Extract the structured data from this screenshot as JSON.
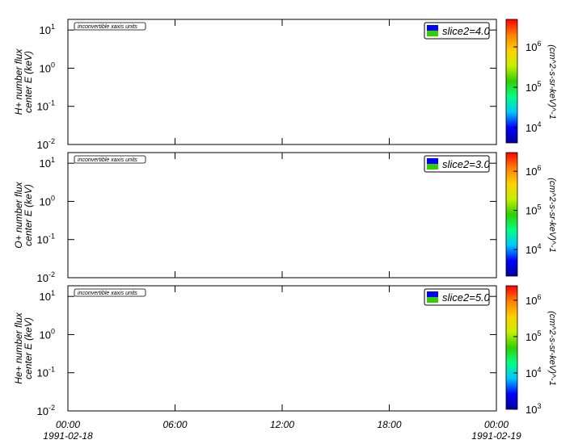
{
  "chart_data": [
    {
      "type": "spectrogram",
      "ylabel": [
        "H+ number flux",
        "center E (keV)"
      ],
      "annotation": "inconvertible xaxis units",
      "legend": "slice2=4.0",
      "xlim": [
        0,
        24
      ],
      "ylim": [
        0.01,
        19
      ],
      "log_y": true,
      "yticks": [
        {
          "value": 0.01,
          "label": "10",
          "exp": "-2"
        },
        {
          "value": 0.1,
          "label": "10",
          "exp": "-1"
        },
        {
          "value": 1,
          "label": "10",
          "exp": "0"
        },
        {
          "value": 10,
          "label": "10",
          "exp": "1"
        }
      ],
      "zlabel": "(cm^2-s-sr-keV)^-1",
      "zlim": [
        4200,
        4800000
      ],
      "zticks": [
        {
          "value": 10000,
          "label": "10",
          "exp": "4"
        },
        {
          "value": 100000,
          "label": "10",
          "exp": "5"
        },
        {
          "value": 1000000,
          "label": "10",
          "exp": "6"
        }
      ],
      "colorscale": [
        "#0000a0",
        "#0000ff",
        "#00c8ff",
        "#00ff80",
        "#30d000",
        "#c8f000",
        "#ffd000",
        "#ff8000",
        "#ff0000"
      ]
    },
    {
      "type": "spectrogram",
      "ylabel": [
        "O+ number flux",
        "center E (keV)"
      ],
      "annotation": "inconvertible xaxis units",
      "legend": "slice2=3.0",
      "xlim": [
        0,
        24
      ],
      "ylim": [
        0.01,
        19
      ],
      "log_y": true,
      "yticks": [
        {
          "value": 0.01,
          "label": "10",
          "exp": "-2"
        },
        {
          "value": 0.1,
          "label": "10",
          "exp": "-1"
        },
        {
          "value": 1,
          "label": "10",
          "exp": "0"
        },
        {
          "value": 10,
          "label": "10",
          "exp": "1"
        }
      ],
      "zlabel": "(cm^2-s-sr-keV)^-1",
      "zlim": [
        2100,
        3000000
      ],
      "zticks": [
        {
          "value": 10000,
          "label": "10",
          "exp": "4"
        },
        {
          "value": 100000,
          "label": "10",
          "exp": "5"
        },
        {
          "value": 1000000,
          "label": "10",
          "exp": "6"
        }
      ],
      "colorscale": [
        "#0000a0",
        "#0000ff",
        "#00c8ff",
        "#00ff80",
        "#30d000",
        "#c8f000",
        "#ffd000",
        "#ff8000",
        "#ff0000"
      ]
    },
    {
      "type": "spectrogram",
      "ylabel": [
        "He+ number flux",
        "center E (keV)"
      ],
      "annotation": "inconvertible xaxis units",
      "legend": "slice2=5.0",
      "xlim": [
        0,
        24
      ],
      "ylim": [
        0.01,
        19
      ],
      "log_y": true,
      "yticks": [
        {
          "value": 0.01,
          "label": "10",
          "exp": "-2"
        },
        {
          "value": 0.1,
          "label": "10",
          "exp": "-1"
        },
        {
          "value": 1,
          "label": "10",
          "exp": "0"
        },
        {
          "value": 10,
          "label": "10",
          "exp": "1"
        }
      ],
      "xticks": [
        {
          "value": 0,
          "label": "00:00",
          "date": "1991-02-18"
        },
        {
          "value": 6,
          "label": "06:00"
        },
        {
          "value": 12,
          "label": "12:00"
        },
        {
          "value": 18,
          "label": "18:00"
        },
        {
          "value": 24,
          "label": "00:00",
          "date": "1991-02-19"
        }
      ],
      "zlabel": "(cm^2-s-sr-keV)^-1",
      "zlim": [
        1000,
        2500000
      ],
      "zticks": [
        {
          "value": 1000,
          "label": "10",
          "exp": "3"
        },
        {
          "value": 10000,
          "label": "10",
          "exp": "4"
        },
        {
          "value": 100000,
          "label": "10",
          "exp": "5"
        },
        {
          "value": 1000000,
          "label": "10",
          "exp": "6"
        }
      ],
      "colorscale": [
        "#0000a0",
        "#0000ff",
        "#00c8ff",
        "#00ff80",
        "#30d000",
        "#c8f000",
        "#ffd000",
        "#ff8000",
        "#ff0000"
      ]
    }
  ]
}
